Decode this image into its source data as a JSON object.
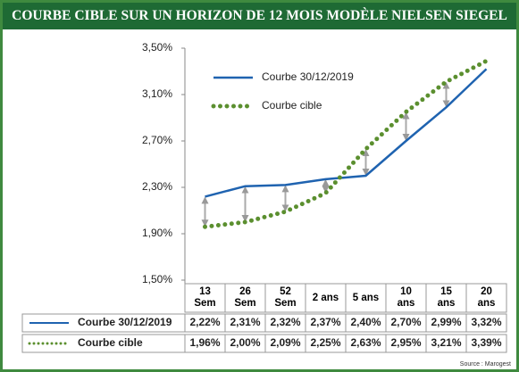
{
  "chart_data": {
    "type": "line",
    "title": "COURBE CIBLE SUR UN HORIZON DE 12 MOIS MODÈLE NIELSEN SIEGEL",
    "categories": [
      "13\nSem",
      "26\nSem",
      "52\nSem",
      "2 ans",
      "5 ans",
      "10\nans",
      "15\nans",
      "20\nans"
    ],
    "series": [
      {
        "name": "Courbe 30/12/2019",
        "color": "#1f63b0",
        "style": "solid",
        "values": [
          2.22,
          2.31,
          2.32,
          2.37,
          2.4,
          2.7,
          2.99,
          3.32
        ],
        "value_labels": [
          "2,22%",
          "2,31%",
          "2,32%",
          "2,37%",
          "2,40%",
          "2,70%",
          "2,99%",
          "3,32%"
        ]
      },
      {
        "name": "Courbe cible",
        "color": "#5b8f2f",
        "style": "dotted",
        "values": [
          1.96,
          2.0,
          2.09,
          2.25,
          2.63,
          2.95,
          3.21,
          3.39
        ],
        "value_labels": [
          "1,96%",
          "2,00%",
          "2,09%",
          "2,25%",
          "2,63%",
          "2,95%",
          "3,21%",
          "3,39%"
        ]
      }
    ],
    "ylim": [
      1.5,
      3.5
    ],
    "yticks": [
      {
        "value": 1.5,
        "label": "1,50%"
      },
      {
        "value": 1.9,
        "label": "1,90%"
      },
      {
        "value": 2.3,
        "label": "2,30%"
      },
      {
        "value": 2.7,
        "label": "2,70%"
      },
      {
        "value": 3.1,
        "label": "3,10%"
      },
      {
        "value": 3.5,
        "label": "3,50%"
      }
    ],
    "source": "Source : Marogest"
  }
}
